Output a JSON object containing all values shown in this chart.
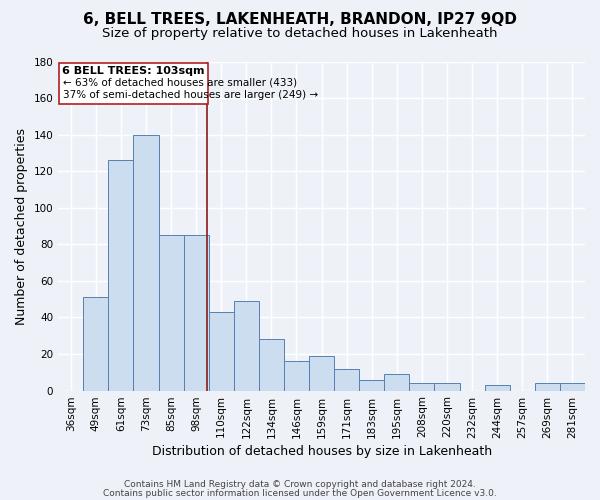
{
  "title": "6, BELL TREES, LAKENHEATH, BRANDON, IP27 9QD",
  "subtitle": "Size of property relative to detached houses in Lakenheath",
  "xlabel": "Distribution of detached houses by size in Lakenheath",
  "ylabel": "Number of detached properties",
  "categories": [
    "36sqm",
    "49sqm",
    "61sqm",
    "73sqm",
    "85sqm",
    "98sqm",
    "110sqm",
    "122sqm",
    "134sqm",
    "146sqm",
    "159sqm",
    "171sqm",
    "183sqm",
    "195sqm",
    "208sqm",
    "220sqm",
    "232sqm",
    "244sqm",
    "257sqm",
    "269sqm",
    "281sqm"
  ],
  "values": [
    0,
    51,
    126,
    140,
    85,
    85,
    43,
    49,
    28,
    16,
    19,
    12,
    6,
    9,
    4,
    4,
    0,
    3,
    0,
    4,
    4
  ],
  "bar_color": "#ccddf0",
  "bar_edge_color": "#5580b0",
  "ylim": [
    0,
    180
  ],
  "yticks": [
    0,
    20,
    40,
    60,
    80,
    100,
    120,
    140,
    160,
    180
  ],
  "vline_x": 5.42,
  "vline_color": "#8b1a1a",
  "annotation_title": "6 BELL TREES: 103sqm",
  "annotation_line1": "← 63% of detached houses are smaller (433)",
  "annotation_line2": "37% of semi-detached houses are larger (249) →",
  "annotation_box_color": "#ffffff",
  "annotation_box_edge": "#b02020",
  "footer1": "Contains HM Land Registry data © Crown copyright and database right 2024.",
  "footer2": "Contains public sector information licensed under the Open Government Licence v3.0.",
  "background_color": "#eef2f8",
  "grid_color": "#ffffff",
  "title_fontsize": 11,
  "subtitle_fontsize": 9.5,
  "axis_label_fontsize": 9,
  "tick_fontsize": 7.5,
  "footer_fontsize": 6.5,
  "annotation_title_fontsize": 8,
  "annotation_body_fontsize": 7.5
}
